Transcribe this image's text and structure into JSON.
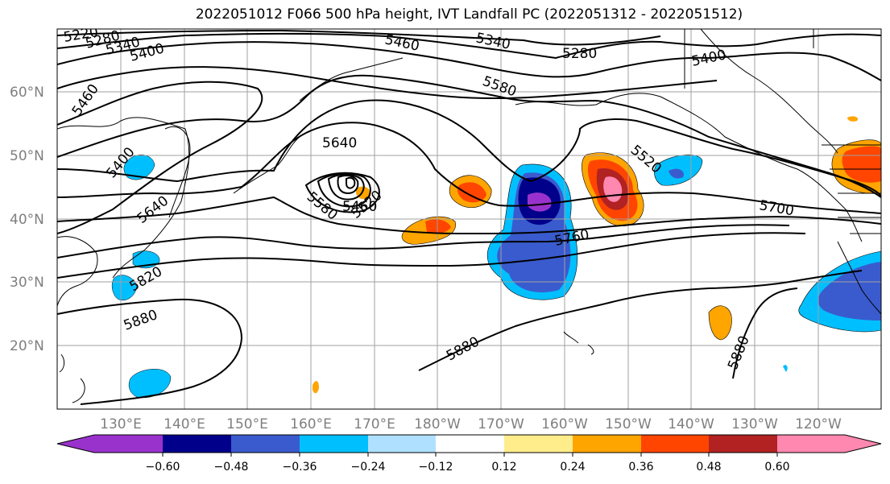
{
  "title": "2022051012 F066 500 hPa height, IVT Landfall PC (2022051312 - 2022051512)",
  "lat_labels": [
    "60°N",
    "50°N",
    "40°N",
    "30°N",
    "20°N"
  ],
  "lon_labels": [
    "130°E",
    "140°E",
    "150°E",
    "160°E",
    "170°E",
    "180°W",
    "170°W",
    "160°W",
    "150°W",
    "140°W",
    "130°W",
    "120°W"
  ],
  "contour_labels": [
    "5220",
    "5280",
    "5340",
    "5400",
    "5460",
    "5340",
    "5280",
    "5400",
    "5580",
    "5460",
    "5400",
    "5640",
    "5640",
    "5580",
    "5460",
    "5520",
    "5520",
    "5700",
    "5760",
    "5820",
    "5880",
    "5880",
    "5880"
  ],
  "colorbar": {
    "ticks": [
      "−0.60",
      "−0.48",
      "−0.36",
      "−0.24",
      "−0.12",
      "0.12",
      "0.24",
      "0.36",
      "0.48",
      "0.60"
    ],
    "colors": [
      "#9932cc",
      "#00008b",
      "#3a5bcd",
      "#00bfff",
      "#b0e0ff",
      "#ffffff",
      "#ffec8b",
      "#ffa500",
      "#ff4500",
      "#b22222",
      "#ff88b0"
    ]
  }
}
